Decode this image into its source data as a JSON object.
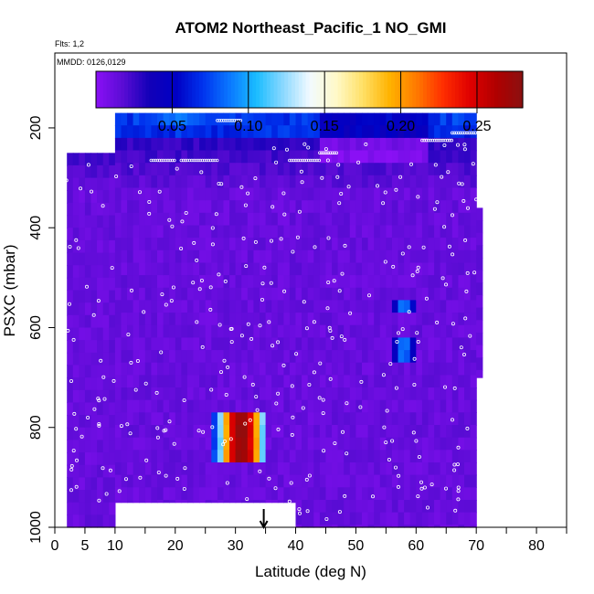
{
  "chart_data": {
    "type": "heatmap",
    "title": "ATOM2 Northeast_Pacific_1 NO_GMI",
    "flights_note": "Flts: 1,2",
    "dates_note": "MMDD: 0126,0129",
    "xlabel": "Latitude (deg N)",
    "ylabel": "PSXC (mbar)",
    "xlim": [
      0,
      85
    ],
    "ylim": [
      1000,
      50
    ],
    "x_ticks_major": [
      0,
      5,
      10,
      20,
      30,
      40,
      50,
      60,
      70,
      80
    ],
    "x_ticks_all": [
      0,
      5,
      10,
      15,
      20,
      25,
      30,
      35,
      40,
      45,
      50,
      55,
      60,
      65,
      70,
      75,
      80,
      85
    ],
    "y_ticks": [
      200,
      400,
      600,
      800,
      1000
    ],
    "colorbar": {
      "range": [
        0,
        0.28
      ],
      "ticks": [
        "0.05",
        "0.10",
        "0.15",
        "0.20",
        "0.25"
      ],
      "tick_values": [
        0.05,
        0.1,
        0.15,
        0.2,
        0.25
      ],
      "colors": [
        "#8a10f5",
        "#5a0cd4",
        "#1200b8",
        "#0000c4",
        "#0033ee",
        "#0a78ff",
        "#1abcff",
        "#8ad8ff",
        "#f2faff",
        "#fff9c8",
        "#ffe066",
        "#ffb300",
        "#ff7a00",
        "#ff2e00",
        "#e00000",
        "#b00000",
        "#8a1010"
      ]
    },
    "grid": false,
    "marker": {
      "latitude": 34.7,
      "pressure": 1000,
      "symbol": "down-arrow"
    },
    "columns": [
      {
        "lat0": 0,
        "lat1": 2,
        "top": 1000,
        "bottom": 1000
      },
      {
        "lat0": 2,
        "lat1": 9,
        "top": 250,
        "bottom": 1000
      },
      {
        "lat0": 9,
        "lat1": 10,
        "top": 250,
        "bottom": 1000
      },
      {
        "lat0": 10,
        "lat1": 40,
        "top": 170,
        "bottom": 950
      },
      {
        "lat0": 40,
        "lat1": 70,
        "top": 170,
        "bottom": 1000
      },
      {
        "lat0": 70,
        "lat1": 71,
        "top": 360,
        "bottom": 700
      }
    ],
    "hotspots": [
      {
        "lat0": 27,
        "lat1": 35,
        "p0": 760,
        "p1": 860,
        "peak": 0.27
      },
      {
        "lat0": 26,
        "lat1": 30,
        "p0": 760,
        "p1": 860,
        "peak": 0.12
      },
      {
        "lat0": 10,
        "lat1": 30,
        "p0": 170,
        "p1": 200,
        "peak": 0.08
      },
      {
        "lat0": 56,
        "lat1": 60,
        "p0": 540,
        "p1": 580,
        "peak": 0.08
      },
      {
        "lat0": 56,
        "lat1": 60,
        "p0": 630,
        "p1": 680,
        "peak": 0.08
      }
    ]
  }
}
